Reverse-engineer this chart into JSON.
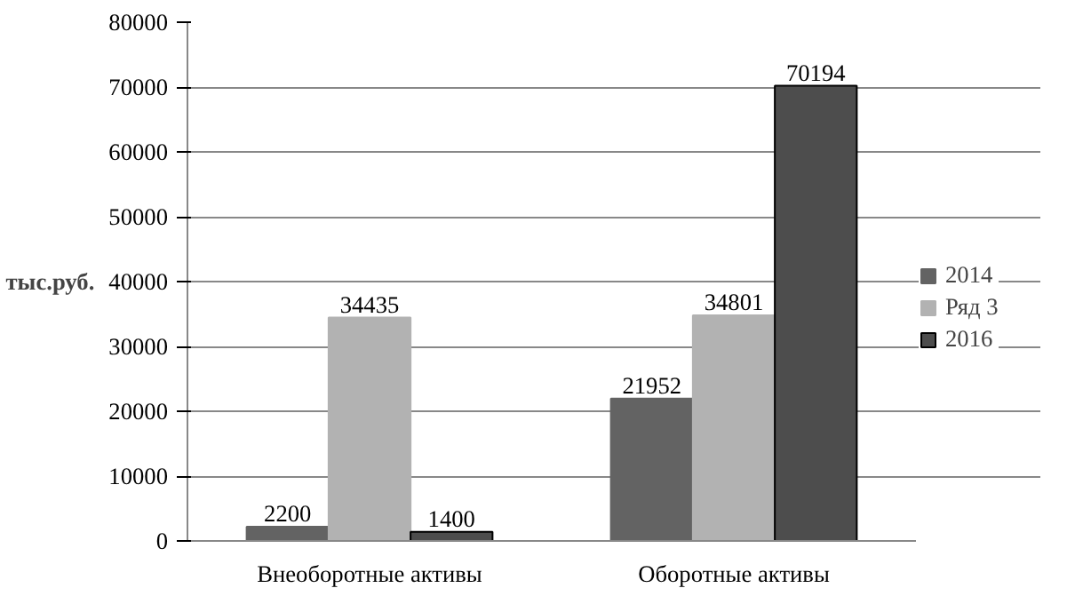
{
  "chart_data": {
    "type": "bar",
    "ylabel": "тыс.руб.",
    "categories": [
      "Внеоборотные активы",
      "Оборотные активы"
    ],
    "series": [
      {
        "name": "2014",
        "color": "#636363",
        "values": [
          2200,
          21952
        ]
      },
      {
        "name": "Ряд 3",
        "color": "#b2b2b2",
        "values": [
          34435,
          34801
        ]
      },
      {
        "name": "2016",
        "color": "#4d4d4d",
        "values": [
          1400,
          70194
        ]
      }
    ],
    "ylim": [
      0,
      80000
    ],
    "yticks": [
      0,
      10000,
      20000,
      30000,
      40000,
      50000,
      60000,
      70000,
      80000
    ],
    "grid": "y",
    "legend": "right",
    "data_labels": true
  }
}
